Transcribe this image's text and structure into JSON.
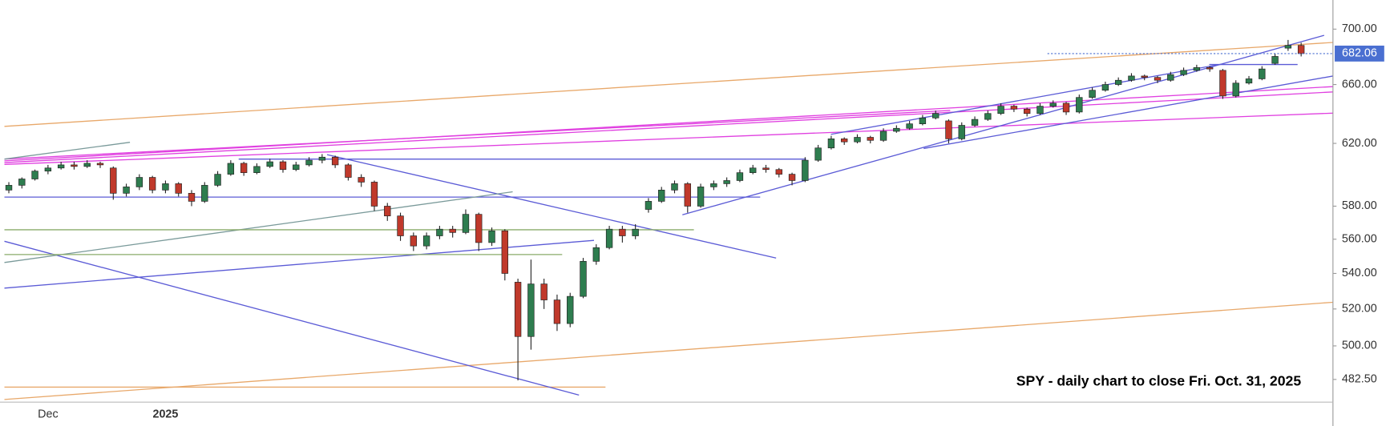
{
  "chart_data": {
    "type": "candlestick",
    "annotation": "SPY - daily chart to close Fri. Oct. 31, 2025",
    "log_scale": true,
    "ylim": [
      471,
      722
    ],
    "yticks": [
      {
        "value": 700,
        "label": "700.00"
      },
      {
        "value": 660,
        "label": "660.00"
      },
      {
        "value": 620,
        "label": "620.00"
      },
      {
        "value": 580,
        "label": "580.00"
      },
      {
        "value": 560,
        "label": "560.00"
      },
      {
        "value": 540,
        "label": "540.00"
      },
      {
        "value": 520,
        "label": "520.00"
      },
      {
        "value": 500,
        "label": "500.00"
      },
      {
        "value": 482.5,
        "label": "482.50"
      }
    ],
    "up_color": "#2e7d4f",
    "down_color": "#c0392b",
    "last_price_color": "#4a6fd1",
    "categories": [
      null,
      null,
      null,
      "Dec",
      null,
      null,
      null,
      null,
      null,
      null,
      null,
      null,
      "2025",
      null,
      null,
      null,
      null,
      null,
      null,
      null,
      null,
      null,
      null,
      null,
      null,
      null,
      null,
      null,
      null,
      null,
      null,
      null,
      null,
      null,
      null,
      null,
      null,
      null,
      null,
      null,
      null,
      null,
      null,
      null,
      null,
      null,
      null,
      null,
      null,
      null,
      null,
      null,
      null,
      null,
      null,
      null,
      null,
      null,
      null,
      null,
      null,
      null,
      null,
      null,
      null,
      null,
      null,
      null,
      null,
      null,
      null,
      null,
      null,
      null,
      null,
      null,
      null,
      null,
      null,
      null,
      null,
      null,
      null,
      null,
      null,
      null,
      null,
      null,
      null,
      null,
      null,
      null,
      null,
      null,
      null,
      null,
      null,
      null,
      null,
      null
    ],
    "ohlc": [
      [
        590,
        595,
        588,
        593
      ],
      [
        593,
        598,
        591,
        597
      ],
      [
        597,
        603,
        596,
        602
      ],
      [
        602,
        606,
        600,
        604
      ],
      [
        604,
        608,
        603,
        606
      ],
      [
        606,
        608,
        603,
        605
      ],
      [
        605,
        609,
        604,
        607
      ],
      [
        607,
        608,
        604,
        606
      ],
      [
        604,
        605,
        584,
        588
      ],
      [
        588,
        594,
        586,
        592
      ],
      [
        592,
        600,
        590,
        598
      ],
      [
        598,
        599,
        588,
        590
      ],
      [
        590,
        596,
        588,
        594
      ],
      [
        594,
        595,
        586,
        588
      ],
      [
        588,
        590,
        580,
        583
      ],
      [
        583,
        595,
        582,
        593
      ],
      [
        593,
        602,
        592,
        600
      ],
      [
        600,
        609,
        599,
        607
      ],
      [
        607,
        608,
        599,
        601
      ],
      [
        601,
        607,
        600,
        605
      ],
      [
        605,
        610,
        604,
        608
      ],
      [
        608,
        609,
        601,
        603
      ],
      [
        603,
        608,
        602,
        606
      ],
      [
        606,
        611,
        605,
        609
      ],
      [
        609,
        613,
        607,
        611
      ],
      [
        611,
        612,
        604,
        606
      ],
      [
        606,
        607,
        596,
        598
      ],
      [
        598,
        600,
        592,
        595
      ],
      [
        595,
        596,
        577,
        580
      ],
      [
        580,
        582,
        571,
        574
      ],
      [
        574,
        576,
        559,
        562
      ],
      [
        562,
        564,
        553,
        556
      ],
      [
        556,
        564,
        554,
        562
      ],
      [
        562,
        568,
        560,
        566
      ],
      [
        566,
        568,
        561,
        564
      ],
      [
        564,
        578,
        563,
        575
      ],
      [
        575,
        576,
        553,
        558
      ],
      [
        558,
        567,
        556,
        565
      ],
      [
        565,
        566,
        536,
        540
      ],
      [
        535,
        537,
        482,
        505
      ],
      [
        505,
        548,
        498,
        534
      ],
      [
        534,
        537,
        520,
        525
      ],
      [
        525,
        528,
        508,
        512
      ],
      [
        512,
        529,
        510,
        527
      ],
      [
        527,
        549,
        526,
        547
      ],
      [
        547,
        557,
        545,
        555
      ],
      [
        555,
        568,
        554,
        566
      ],
      [
        566,
        568,
        558,
        562
      ],
      [
        562,
        569,
        560,
        566
      ],
      [
        578,
        585,
        576,
        583
      ],
      [
        583,
        592,
        582,
        590
      ],
      [
        590,
        596,
        588,
        594
      ],
      [
        594,
        595,
        576,
        580
      ],
      [
        580,
        594,
        579,
        592
      ],
      [
        592,
        596,
        590,
        594
      ],
      [
        594,
        598,
        592,
        596
      ],
      [
        596,
        603,
        595,
        601
      ],
      [
        601,
        606,
        600,
        604
      ],
      [
        604,
        606,
        601,
        603
      ],
      [
        603,
        604,
        598,
        600
      ],
      [
        600,
        601,
        593,
        596
      ],
      [
        596,
        611,
        595,
        609
      ],
      [
        609,
        619,
        608,
        617
      ],
      [
        617,
        625,
        616,
        623
      ],
      [
        623,
        624,
        619,
        621
      ],
      [
        621,
        626,
        620,
        624
      ],
      [
        624,
        625,
        620,
        622
      ],
      [
        622,
        630,
        621,
        628
      ],
      [
        628,
        632,
        627,
        630
      ],
      [
        630,
        635,
        629,
        633
      ],
      [
        633,
        639,
        632,
        637
      ],
      [
        637,
        642,
        636,
        640
      ],
      [
        635,
        636,
        620,
        623
      ],
      [
        623,
        634,
        622,
        632
      ],
      [
        632,
        638,
        631,
        636
      ],
      [
        636,
        642,
        635,
        640
      ],
      [
        640,
        647,
        639,
        645
      ],
      [
        645,
        646,
        641,
        643
      ],
      [
        643,
        644,
        638,
        640
      ],
      [
        640,
        647,
        639,
        645
      ],
      [
        645,
        649,
        644,
        647
      ],
      [
        647,
        648,
        639,
        641
      ],
      [
        641,
        653,
        640,
        651
      ],
      [
        651,
        658,
        650,
        656
      ],
      [
        656,
        662,
        655,
        660
      ],
      [
        660,
        665,
        659,
        663
      ],
      [
        663,
        668,
        662,
        666
      ],
      [
        666,
        667,
        663,
        665
      ],
      [
        665,
        666,
        661,
        663
      ],
      [
        663,
        669,
        662,
        667
      ],
      [
        667,
        672,
        666,
        670
      ],
      [
        670,
        674,
        669,
        672
      ],
      [
        672,
        673,
        669,
        671
      ],
      [
        670,
        671,
        650,
        652
      ],
      [
        652,
        663,
        651,
        661
      ],
      [
        661,
        666,
        660,
        664
      ],
      [
        664,
        673,
        663,
        671
      ],
      [
        675,
        682,
        674,
        680
      ],
      [
        686,
        692,
        684,
        688
      ],
      [
        688,
        690,
        680,
        682.06
      ]
    ]
  }
}
